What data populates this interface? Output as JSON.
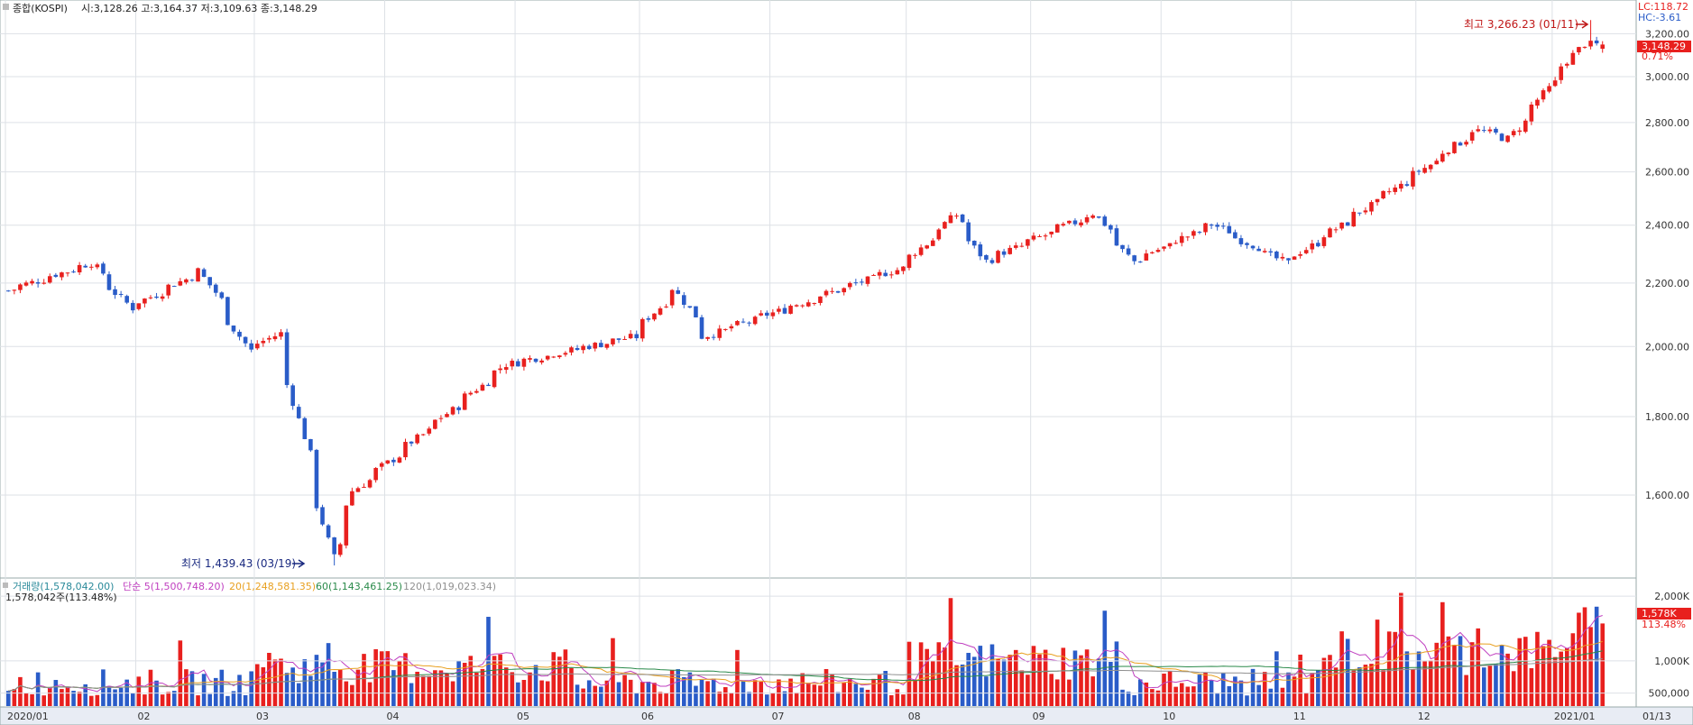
{
  "header": {
    "title": "종합(KOSPI)",
    "ohlc_text": "시:3,128.26 고:3,164.37 저:3,109.63 종:3,148.29"
  },
  "right_labels": {
    "lc": "LC:118.72",
    "hc": "HC:-3.61",
    "last_price": "3,148.29",
    "change_pct": "0.71%"
  },
  "annotations": {
    "high": "최고 3,266.23 (01/11)",
    "low": "최저 1,439.43 (03/19)"
  },
  "volume_header": {
    "volume": "거래량(1,578,042.00)",
    "ma5": "단순 5(1,500,748.20)",
    "ma20": "20(1,248,581.35)",
    "ma60": "60(1,143,461.25)",
    "ma120": "120(1,019,023.34)",
    "sub": "1,578,042주(113.48%)"
  },
  "volume_right": {
    "last": "1,578K",
    "pct": "113.48%"
  },
  "x_labels": [
    "2020/01",
    "02",
    "03",
    "04",
    "05",
    "06",
    "07",
    "08",
    "09",
    "10",
    "11",
    "12",
    "2021/01",
    "01/13"
  ],
  "y_price_ticks": [
    "3,200.00",
    "3,000.00",
    "2,800.00",
    "2,600.00",
    "2,400.00",
    "2,200.00",
    "2,000.00",
    "1,800.00",
    "1,600.00"
  ],
  "y_volume_ticks": [
    "2,000K",
    "1,000K",
    "500,000"
  ],
  "colors": {
    "up": "#e8201e",
    "down": "#2a5cc8",
    "ma5": "#c040c0",
    "ma20": "#e8a020",
    "ma60": "#2a8a4a",
    "ma120": "#909090"
  },
  "chart_data": {
    "type": "candlestick",
    "title": "종합(KOSPI)",
    "ylim": [
      1439,
      3266
    ],
    "y_scale": "log",
    "grid": true,
    "anchors": [
      {
        "date": "2020-01-02",
        "close": 2175
      },
      {
        "date": "2020-01-22",
        "close": 2267
      },
      {
        "date": "2020-01-31",
        "close": 2119
      },
      {
        "date": "2020-02-17",
        "close": 2242
      },
      {
        "date": "2020-02-28",
        "close": 1987
      },
      {
        "date": "2020-03-06",
        "close": 2040
      },
      {
        "date": "2020-03-19",
        "close": 1457
      },
      {
        "date": "2020-03-24",
        "close": 1610
      },
      {
        "date": "2020-04-29",
        "close": 1947
      },
      {
        "date": "2020-05-29",
        "close": 2030
      },
      {
        "date": "2020-06-08",
        "close": 2184
      },
      {
        "date": "2020-06-15",
        "close": 2030
      },
      {
        "date": "2020-07-31",
        "close": 2249
      },
      {
        "date": "2020-08-13",
        "close": 2437
      },
      {
        "date": "2020-08-20",
        "close": 2274
      },
      {
        "date": "2020-09-15",
        "close": 2443
      },
      {
        "date": "2020-09-24",
        "close": 2273
      },
      {
        "date": "2020-10-13",
        "close": 2403
      },
      {
        "date": "2020-10-30",
        "close": 2267
      },
      {
        "date": "2020-11-30",
        "close": 2591
      },
      {
        "date": "2020-12-14",
        "close": 2770
      },
      {
        "date": "2020-12-22",
        "close": 2733
      },
      {
        "date": "2021-01-08",
        "close": 3152
      },
      {
        "date": "2021-01-11",
        "close": 3148
      },
      {
        "date": "2021-01-13",
        "close": 3148
      }
    ],
    "extremes": {
      "high": {
        "date": "2021-01-11",
        "value": 3266.23
      },
      "low": {
        "date": "2020-03-19",
        "value": 1439.43
      }
    },
    "last": {
      "open": 3128.26,
      "high": 3164.37,
      "low": 3109.63,
      "close": 3148.29
    },
    "volume": {
      "last": 1578042,
      "ma5": 1500748.2,
      "ma20": 1248581.35,
      "ma60": 1143461.25,
      "ma120": 1019023.34
    }
  }
}
